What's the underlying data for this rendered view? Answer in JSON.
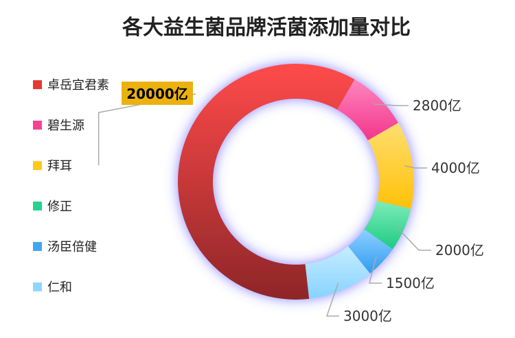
{
  "chart_data": {
    "type": "pie",
    "title": "各大益生菌品牌活菌添加量对比",
    "legend_position": "left",
    "categories": [
      "卓岳宜君素",
      "碧生源",
      "拜耳",
      "修正",
      "汤臣倍健",
      "仁和"
    ],
    "values": [
      20000,
      2800,
      4000,
      2000,
      1500,
      3000
    ],
    "value_labels": [
      "20000亿",
      "2800亿",
      "4000亿",
      "2000亿",
      "1500亿",
      "3000亿"
    ],
    "highlighted_category": "卓岳宜君素",
    "colors": [
      "#e53935",
      "#f54391",
      "#ffc91b",
      "#26d38b",
      "#3fa7f4",
      "#8fd6ff"
    ]
  }
}
